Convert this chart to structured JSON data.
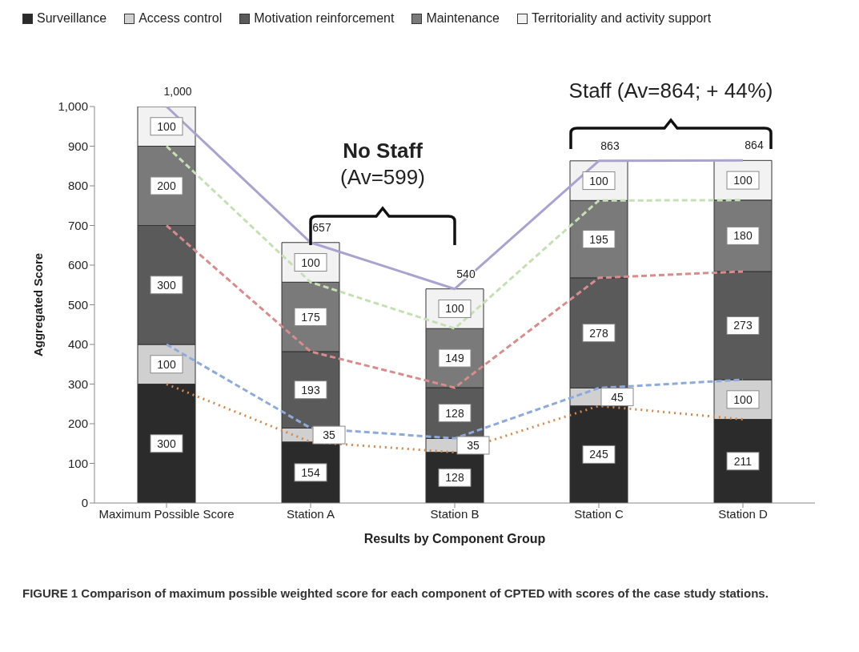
{
  "chart_data": {
    "type": "bar",
    "stacked": true,
    "xlabel": "Results by Component Group",
    "ylabel": "Aggregated Score",
    "categories": [
      "Maximum Possible Score",
      "Station A",
      "Station B",
      "Station C",
      "Station D"
    ],
    "series": [
      {
        "name": "Surveillance",
        "color": "#2b2b2b",
        "values": [
          300,
          154,
          128,
          245,
          211
        ],
        "value_labels": [
          "300",
          "154",
          "128",
          "245",
          "211"
        ]
      },
      {
        "name": "Access control",
        "color": "#d0d0d0",
        "values": [
          100,
          35,
          35,
          45,
          100
        ],
        "value_labels": [
          "100",
          "35",
          "35",
          "45",
          "100"
        ]
      },
      {
        "name": "Motivation reinforcement",
        "color": "#5a5a5a",
        "values": [
          300,
          193,
          128,
          278,
          273
        ],
        "value_labels": [
          "300",
          "193",
          "128",
          "278",
          "273"
        ]
      },
      {
        "name": "Maintenance",
        "color": "#7a7a7a",
        "values": [
          200,
          175,
          149,
          195,
          180
        ],
        "value_labels": [
          "200",
          "175",
          "149",
          "195",
          "180"
        ]
      },
      {
        "name": "Territoriality and activity support",
        "color": "#f2f2f2",
        "values": [
          100,
          100,
          100,
          100,
          100
        ],
        "value_labels": [
          "100",
          "100",
          "100",
          "100",
          "100"
        ]
      },
      {
        "type": "line",
        "color": "#d08a50",
        "line_style": "dotted",
        "values": [
          300,
          154,
          128,
          245,
          211
        ]
      },
      {
        "type": "line",
        "color": "#8eaadb",
        "line_style": "dashed",
        "values": [
          400,
          189,
          163,
          290,
          311
        ]
      },
      {
        "type": "line",
        "color": "#d98c8c",
        "line_style": "dashed",
        "values": [
          700,
          382,
          291,
          568,
          584
        ]
      },
      {
        "type": "line",
        "color": "#c5e0b4",
        "line_style": "dashed",
        "values": [
          900,
          557,
          440,
          763,
          764
        ]
      },
      {
        "type": "line",
        "color": "#a9a3cf",
        "line_style": "solid",
        "values": [
          1000,
          657,
          540,
          863,
          864
        ]
      }
    ],
    "totals": [
      "1,000",
      "657",
      "540",
      "863",
      "864"
    ],
    "ylim": [
      0,
      1000
    ],
    "yticks": [
      0,
      100,
      200,
      300,
      400,
      500,
      600,
      700,
      800,
      900,
      {
        "value": 1000,
        "label": "1,000"
      }
    ],
    "grid": false,
    "legend": "top",
    "annotations": [
      "No Staff",
      "(Av=599)",
      "Staff (Av=864; + 44%)",
      "FIGURE 1 Comparison of maximum possible weighted score for each component of CPTED with scores of the case study stations."
    ]
  }
}
